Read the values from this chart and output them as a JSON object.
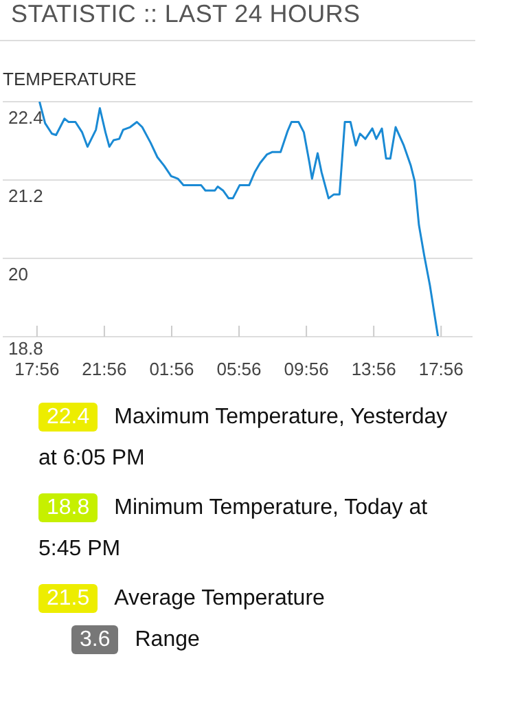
{
  "chart_data": {
    "type": "line",
    "title": "STATISTIC :: LAST 24 HOURS",
    "subtitle": "TEMPERATURE",
    "x": [
      "--01-01T18:05",
      "--01-01T18:25",
      "--01-01T18:49",
      "--01-01T19:04",
      "--01-01T19:34",
      "--01-01T19:48",
      "--01-01T20:13",
      "--01-01T20:37",
      "--01-01T20:56",
      "--01-01T21:26",
      "--01-01T21:40",
      "--01-01T22:00",
      "--01-01T22:14",
      "--01-01T22:29",
      "--01-01T22:49",
      "--01-01T23:03",
      "--01-01T23:28",
      "--01-01T23:52",
      "--01-02T00:11",
      "--01-02T00:41",
      "--01-02T01:05",
      "--01-02T01:29",
      "--01-02T01:54",
      "--01-02T02:18",
      "--01-02T02:38",
      "--01-02T03:41",
      "--01-02T03:56",
      "--01-02T04:30",
      "--01-02T04:40",
      "--01-02T04:59",
      "--01-02T05:19",
      "--01-02T05:34",
      "--01-02T05:58",
      "--01-02T06:32",
      "--01-02T06:52",
      "--01-02T07:11",
      "--01-02T07:35",
      "--01-02T07:55",
      "--01-02T08:24",
      "--01-02T08:49",
      "--01-02T09:03",
      "--01-02T09:28",
      "--01-02T09:47",
      "--01-02T10:07",
      "--01-02T10:16",
      "--01-02T10:36",
      "--01-02T10:50",
      "--01-02T11:15",
      "--01-02T11:34",
      "--01-02T11:54",
      "--01-02T12:13",
      "--01-02T12:33",
      "--01-02T12:52",
      "--01-02T13:07",
      "--01-02T13:26",
      "--01-02T13:51",
      "--01-02T14:05",
      "--01-02T14:25",
      "--01-02T14:40",
      "--01-02T14:55",
      "--01-02T15:14",
      "--01-02T15:43",
      "--01-02T16:08",
      "--01-02T16:22",
      "--01-02T16:37",
      "--01-02T16:56",
      "--01-02T17:16",
      "--01-02T17:31",
      "--01-02T17:45"
    ],
    "series": [
      {
        "color": "#1a8ad4",
        "values": [
          22.4,
          22.07,
          21.91,
          21.89,
          22.14,
          22.09,
          22.09,
          21.93,
          21.71,
          21.97,
          22.3,
          21.93,
          21.71,
          21.81,
          21.83,
          21.97,
          22.01,
          22.09,
          22.01,
          21.77,
          21.55,
          21.42,
          21.26,
          21.22,
          21.12,
          21.12,
          21.04,
          21.04,
          21.1,
          21.04,
          20.92,
          20.92,
          21.12,
          21.12,
          21.32,
          21.46,
          21.59,
          21.63,
          21.63,
          21.95,
          22.09,
          22.09,
          21.93,
          21.46,
          21.22,
          21.61,
          21.32,
          20.92,
          20.98,
          20.98,
          22.09,
          22.09,
          21.73,
          21.91,
          21.83,
          21.99,
          21.83,
          21.99,
          21.53,
          21.53,
          22.01,
          21.73,
          21.42,
          21.18,
          20.51,
          20.04,
          19.59,
          19.18,
          18.8
        ]
      }
    ],
    "xlim": [
      "--01-01T15:54",
      "--01-02T19:48"
    ],
    "xticks": [
      {
        "value": "--01-01T17:56",
        "label": "17:56"
      },
      {
        "value": "--01-01T21:56",
        "label": "21:56"
      },
      {
        "value": "--01-02T01:56",
        "label": "01:56"
      },
      {
        "value": "--01-02T05:56",
        "label": "05:56"
      },
      {
        "value": "--01-02T09:56",
        "label": "09:56"
      },
      {
        "value": "--01-02T13:56",
        "label": "13:56"
      },
      {
        "value": "--01-02T17:56",
        "label": "17:56"
      }
    ],
    "ylim": [
      18.8,
      22.4
    ],
    "yticks": [
      18.8,
      20,
      21.2,
      22.4
    ],
    "grid": "y",
    "marker": "none",
    "line_style": "solid",
    "annotations": [
      "22.4",
      "Maximum Temperature, Yesterday at 6:05 PM",
      "18.8",
      "Minimum Temperature, Today at 5:45 PM",
      "21.5",
      "Average Temperature",
      "3.6",
      "Range"
    ]
  }
}
